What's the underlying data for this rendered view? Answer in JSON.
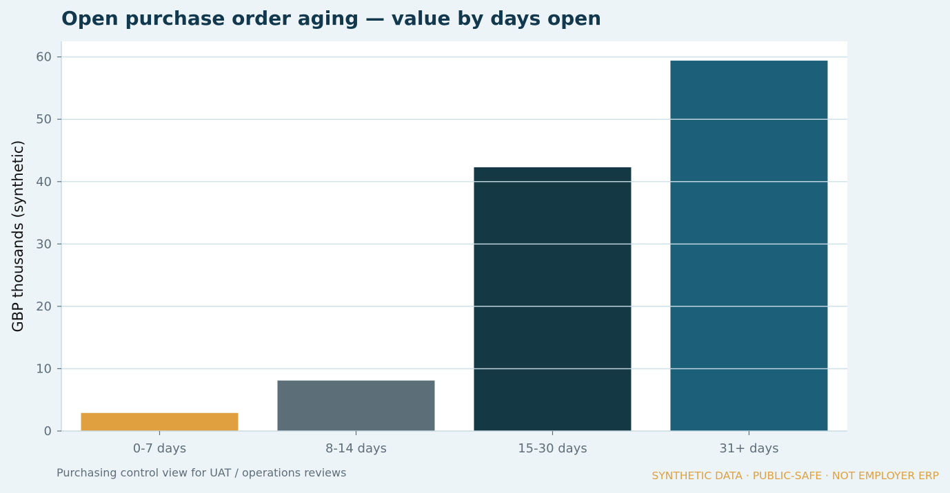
{
  "chart_data": {
    "type": "bar",
    "title": "Open purchase order aging — value by days open",
    "ylabel": "GBP thousands (synthetic)",
    "xlabel": "",
    "categories": [
      "0-7 days",
      "8-14 days",
      "15-30 days",
      "31+ days"
    ],
    "values": [
      2.9,
      8.1,
      42.3,
      59.4
    ],
    "colors": [
      "#e0a040",
      "#5c6f79",
      "#143844",
      "#1b5f79"
    ],
    "ylim": [
      0,
      62.5
    ],
    "yticks": [
      0,
      10,
      20,
      30,
      40,
      50,
      60
    ],
    "grid": true,
    "legend": "none"
  },
  "footnote": "Purchasing control view for UAT / operations reviews",
  "watermark": "SYNTHETIC DATA · PUBLIC-SAFE · NOT EMPLOYER ERP",
  "colors": {
    "page_background": "#ecf4f7",
    "plot_background": "#ffffff",
    "gridline": "#d3e3ea",
    "title": "#12384e",
    "tick_text": "#5f6e79"
  }
}
